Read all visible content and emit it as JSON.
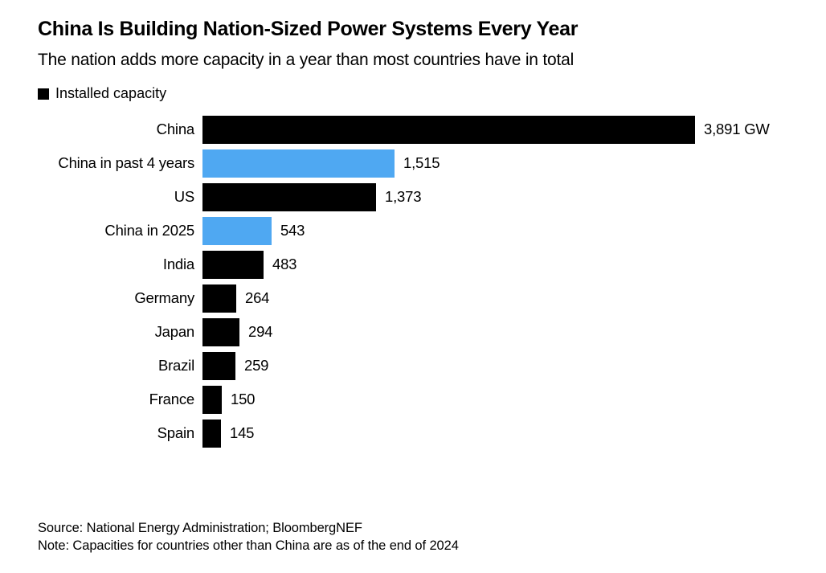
{
  "chart_data": {
    "type": "bar",
    "orientation": "horizontal",
    "title": "China Is Building Nation-Sized Power Systems Every Year",
    "subtitle": "The nation adds more capacity in a year than most countries have in total",
    "legend": [
      {
        "label": "Installed capacity",
        "color": "#000000"
      }
    ],
    "categories": [
      "China",
      "China in past 4 years",
      "US",
      "China in 2025",
      "India",
      "Germany",
      "Japan",
      "Brazil",
      "France",
      "Spain"
    ],
    "values": [
      3891,
      1515,
      1373,
      543,
      483,
      264,
      294,
      259,
      150,
      145
    ],
    "value_labels": [
      "3,891 GW",
      "1,515",
      "1,373",
      "543",
      "483",
      "264",
      "294",
      "259",
      "150",
      "145"
    ],
    "bar_colors": [
      "#000000",
      "#4FA8F2",
      "#000000",
      "#4FA8F2",
      "#000000",
      "#000000",
      "#000000",
      "#000000",
      "#000000",
      "#000000"
    ],
    "unit": "GW",
    "xlim": [
      0,
      3891
    ],
    "grid": false,
    "legend_position": "top-left",
    "source": "Source: National Energy Administration; BloombergNEF",
    "note": "Note: Capacities for countries other than China are as of the end of 2024"
  },
  "colors": {
    "bar_black": "#000000",
    "bar_blue": "#4FA8F2",
    "background": "#ffffff",
    "text": "#000000"
  }
}
